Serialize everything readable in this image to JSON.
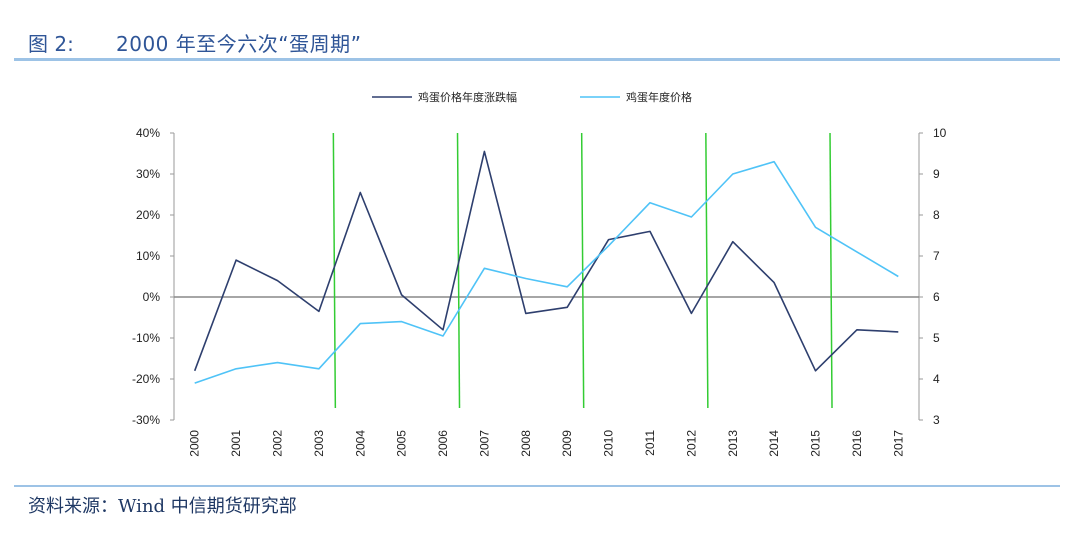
{
  "header": {
    "figure_label": "图 2:",
    "title": "2000 年至今六次“蛋周期”"
  },
  "footer": {
    "source": "资料来源：Wind  中信期货研究部"
  },
  "colors": {
    "dark_series": "#2e3f6e",
    "light_series": "#4fc3f7",
    "cycle_line": "#33cc33",
    "zero_line": "#888888",
    "rule": "#9dc3e6"
  },
  "chart_data": {
    "type": "line",
    "x": [
      "2000",
      "2001",
      "2002",
      "2003",
      "2004",
      "2005",
      "2006",
      "2007",
      "2008",
      "2009",
      "2010",
      "2011",
      "2012",
      "2013",
      "2014",
      "2015",
      "2016",
      "2017"
    ],
    "series": [
      {
        "name": "鸡蛋价格年度涨跌幅",
        "axis": "left",
        "values": [
          -18,
          9,
          4,
          -3.5,
          25.5,
          0.5,
          -8,
          35.5,
          -4,
          -2.5,
          14,
          16,
          -4,
          13.5,
          3.5,
          -18,
          -8,
          -8.5
        ]
      },
      {
        "name": "鸡蛋年度价格",
        "axis": "right",
        "values": [
          3.9,
          4.25,
          4.4,
          4.25,
          5.35,
          5.4,
          5.05,
          6.7,
          6.45,
          6.25,
          7.25,
          8.3,
          7.95,
          9.0,
          9.3,
          7.7,
          7.1,
          6.5
        ]
      }
    ],
    "y_left": {
      "ylim": [
        -30,
        40
      ],
      "ticks": [
        "-30%",
        "-20%",
        "-10%",
        "0%",
        "10%",
        "20%",
        "30%",
        "40%"
      ]
    },
    "y_right": {
      "ylim": [
        3,
        10
      ],
      "ticks": [
        "3",
        "4",
        "5",
        "6",
        "7",
        "8",
        "9",
        "10"
      ]
    },
    "cycle_markers_after": [
      "2003",
      "2006",
      "2009",
      "2012",
      "2015"
    ],
    "legend_position": "top-center",
    "grid": false
  }
}
